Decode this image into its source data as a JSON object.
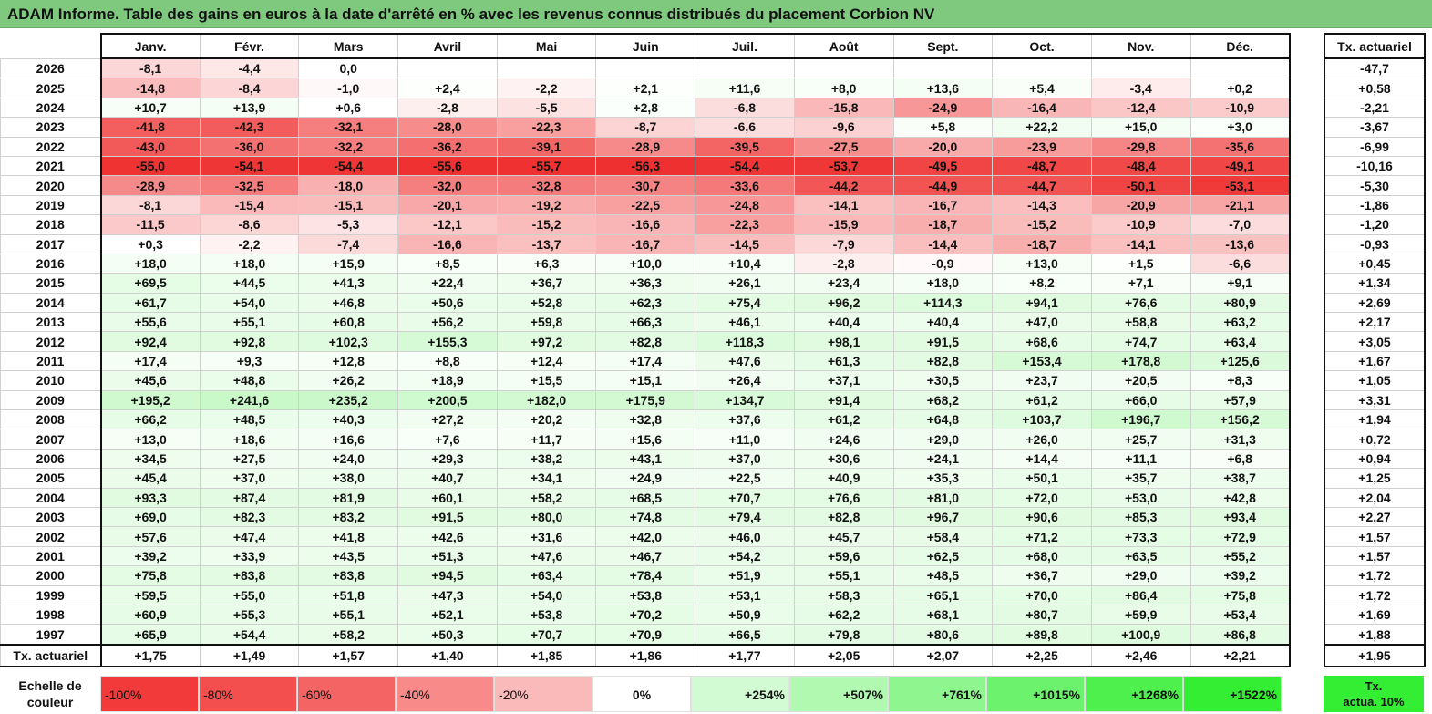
{
  "title": "ADAM Informe. Table des gains en euros à la date d'arrêté en % avec les revenus connus distribués du placement Corbion NV",
  "months": [
    "Janv.",
    "Févr.",
    "Mars",
    "Avril",
    "Mai",
    "Juin",
    "Juil.",
    "Août",
    "Sept.",
    "Oct.",
    "Nov.",
    "Déc."
  ],
  "side_header": "Tx. actuariel",
  "rows": [
    {
      "year": "2026",
      "values": [
        "-8,1",
        "-4,4",
        "0,0",
        "",
        "",
        "",
        "",
        "",
        "",
        "",
        "",
        ""
      ],
      "rate": "-47,7"
    },
    {
      "year": "2025",
      "values": [
        "-14,8",
        "-8,4",
        "-1,0",
        "+2,4",
        "-2,2",
        "+2,1",
        "+11,6",
        "+8,0",
        "+13,6",
        "+5,4",
        "-3,4",
        "+0,2"
      ],
      "rate": "+0,58"
    },
    {
      "year": "2024",
      "values": [
        "+10,7",
        "+13,9",
        "+0,6",
        "-2,8",
        "-5,5",
        "+2,8",
        "-6,8",
        "-15,8",
        "-24,9",
        "-16,4",
        "-12,4",
        "-10,9"
      ],
      "rate": "-2,21"
    },
    {
      "year": "2023",
      "values": [
        "-41,8",
        "-42,3",
        "-32,1",
        "-28,0",
        "-22,3",
        "-8,7",
        "-6,6",
        "-9,6",
        "+5,8",
        "+22,2",
        "+15,0",
        "+3,0"
      ],
      "rate": "-3,67"
    },
    {
      "year": "2022",
      "values": [
        "-43,0",
        "-36,0",
        "-32,2",
        "-36,2",
        "-39,1",
        "-28,9",
        "-39,5",
        "-27,5",
        "-20,0",
        "-23,9",
        "-29,8",
        "-35,6"
      ],
      "rate": "-6,99"
    },
    {
      "year": "2021",
      "values": [
        "-55,0",
        "-54,1",
        "-54,4",
        "-55,6",
        "-55,7",
        "-56,3",
        "-54,4",
        "-53,7",
        "-49,5",
        "-48,7",
        "-48,4",
        "-49,1"
      ],
      "rate": "-10,16"
    },
    {
      "year": "2020",
      "values": [
        "-28,9",
        "-32,5",
        "-18,0",
        "-32,0",
        "-32,8",
        "-30,7",
        "-33,6",
        "-44,2",
        "-44,9",
        "-44,7",
        "-50,1",
        "-53,1"
      ],
      "rate": "-5,30"
    },
    {
      "year": "2019",
      "values": [
        "-8,1",
        "-15,4",
        "-15,1",
        "-20,1",
        "-19,2",
        "-22,5",
        "-24,8",
        "-14,1",
        "-16,7",
        "-14,3",
        "-20,9",
        "-21,1"
      ],
      "rate": "-1,86"
    },
    {
      "year": "2018",
      "values": [
        "-11,5",
        "-8,6",
        "-5,3",
        "-12,1",
        "-15,2",
        "-16,6",
        "-22,3",
        "-15,9",
        "-18,7",
        "-15,2",
        "-10,9",
        "-7,0"
      ],
      "rate": "-1,20"
    },
    {
      "year": "2017",
      "values": [
        "+0,3",
        "-2,2",
        "-7,4",
        "-16,6",
        "-13,7",
        "-16,7",
        "-14,5",
        "-7,9",
        "-14,4",
        "-18,7",
        "-14,1",
        "-13,6"
      ],
      "rate": "-0,93"
    },
    {
      "year": "2016",
      "values": [
        "+18,0",
        "+18,0",
        "+15,9",
        "+8,5",
        "+6,3",
        "+10,0",
        "+10,4",
        "-2,8",
        "-0,9",
        "+13,0",
        "+1,5",
        "-6,6"
      ],
      "rate": "+0,45"
    },
    {
      "year": "2015",
      "values": [
        "+69,5",
        "+44,5",
        "+41,3",
        "+22,4",
        "+36,7",
        "+36,3",
        "+26,1",
        "+23,4",
        "+18,0",
        "+8,2",
        "+7,1",
        "+9,1"
      ],
      "rate": "+1,34"
    },
    {
      "year": "2014",
      "values": [
        "+61,7",
        "+54,0",
        "+46,8",
        "+50,6",
        "+52,8",
        "+62,3",
        "+75,4",
        "+96,2",
        "+114,3",
        "+94,1",
        "+76,6",
        "+80,9"
      ],
      "rate": "+2,69"
    },
    {
      "year": "2013",
      "values": [
        "+55,6",
        "+55,1",
        "+60,8",
        "+56,2",
        "+59,8",
        "+66,3",
        "+46,1",
        "+40,4",
        "+40,4",
        "+47,0",
        "+58,8",
        "+63,2"
      ],
      "rate": "+2,17"
    },
    {
      "year": "2012",
      "values": [
        "+92,4",
        "+92,8",
        "+102,3",
        "+155,3",
        "+97,2",
        "+82,8",
        "+118,3",
        "+98,1",
        "+91,5",
        "+68,6",
        "+74,7",
        "+63,4"
      ],
      "rate": "+3,05"
    },
    {
      "year": "2011",
      "values": [
        "+17,4",
        "+9,3",
        "+12,8",
        "+8,8",
        "+12,4",
        "+17,4",
        "+47,6",
        "+61,3",
        "+82,8",
        "+153,4",
        "+178,8",
        "+125,6"
      ],
      "rate": "+1,67"
    },
    {
      "year": "2010",
      "values": [
        "+45,6",
        "+48,8",
        "+26,2",
        "+18,9",
        "+15,5",
        "+15,1",
        "+26,4",
        "+37,1",
        "+30,5",
        "+23,7",
        "+20,5",
        "+8,3"
      ],
      "rate": "+1,05"
    },
    {
      "year": "2009",
      "values": [
        "+195,2",
        "+241,6",
        "+235,2",
        "+200,5",
        "+182,0",
        "+175,9",
        "+134,7",
        "+91,4",
        "+68,2",
        "+61,2",
        "+66,0",
        "+57,9"
      ],
      "rate": "+3,31"
    },
    {
      "year": "2008",
      "values": [
        "+66,2",
        "+48,5",
        "+40,3",
        "+27,2",
        "+20,2",
        "+32,8",
        "+37,6",
        "+61,2",
        "+64,8",
        "+103,7",
        "+196,7",
        "+156,2"
      ],
      "rate": "+1,94"
    },
    {
      "year": "2007",
      "values": [
        "+13,0",
        "+18,6",
        "+16,6",
        "+7,6",
        "+11,7",
        "+15,6",
        "+11,0",
        "+24,6",
        "+29,0",
        "+26,0",
        "+25,7",
        "+31,3"
      ],
      "rate": "+0,72"
    },
    {
      "year": "2006",
      "values": [
        "+34,5",
        "+27,5",
        "+24,0",
        "+29,3",
        "+38,2",
        "+43,1",
        "+37,0",
        "+30,6",
        "+24,1",
        "+14,4",
        "+11,1",
        "+6,8"
      ],
      "rate": "+0,94"
    },
    {
      "year": "2005",
      "values": [
        "+45,4",
        "+37,0",
        "+38,0",
        "+40,7",
        "+34,1",
        "+24,9",
        "+22,5",
        "+40,9",
        "+35,3",
        "+50,1",
        "+35,7",
        "+38,7"
      ],
      "rate": "+1,25"
    },
    {
      "year": "2004",
      "values": [
        "+93,3",
        "+87,4",
        "+81,9",
        "+60,1",
        "+58,2",
        "+68,5",
        "+70,7",
        "+76,6",
        "+81,0",
        "+72,0",
        "+53,0",
        "+42,8"
      ],
      "rate": "+2,04"
    },
    {
      "year": "2003",
      "values": [
        "+69,0",
        "+82,3",
        "+83,2",
        "+91,5",
        "+80,0",
        "+74,8",
        "+79,4",
        "+82,8",
        "+96,7",
        "+90,6",
        "+85,3",
        "+93,4"
      ],
      "rate": "+2,27"
    },
    {
      "year": "2002",
      "values": [
        "+57,6",
        "+47,4",
        "+41,8",
        "+42,6",
        "+31,6",
        "+42,0",
        "+46,0",
        "+45,7",
        "+58,4",
        "+71,2",
        "+73,3",
        "+72,9"
      ],
      "rate": "+1,57"
    },
    {
      "year": "2001",
      "values": [
        "+39,2",
        "+33,9",
        "+43,5",
        "+51,3",
        "+47,6",
        "+46,7",
        "+54,2",
        "+59,6",
        "+62,5",
        "+68,0",
        "+63,5",
        "+55,2"
      ],
      "rate": "+1,57"
    },
    {
      "year": "2000",
      "values": [
        "+75,8",
        "+83,8",
        "+83,8",
        "+94,5",
        "+63,4",
        "+78,4",
        "+51,9",
        "+55,1",
        "+48,5",
        "+36,7",
        "+29,0",
        "+39,2"
      ],
      "rate": "+1,72"
    },
    {
      "year": "1999",
      "values": [
        "+59,5",
        "+55,0",
        "+51,8",
        "+47,3",
        "+54,0",
        "+53,8",
        "+53,1",
        "+58,3",
        "+65,1",
        "+70,0",
        "+86,4",
        "+75,8"
      ],
      "rate": "+1,72"
    },
    {
      "year": "1998",
      "values": [
        "+60,9",
        "+55,3",
        "+55,1",
        "+52,1",
        "+53,8",
        "+70,2",
        "+50,9",
        "+62,2",
        "+68,1",
        "+80,7",
        "+59,9",
        "+53,4"
      ],
      "rate": "+1,69"
    },
    {
      "year": "1997",
      "values": [
        "+65,9",
        "+54,4",
        "+58,2",
        "+50,3",
        "+70,7",
        "+70,9",
        "+66,5",
        "+79,8",
        "+80,6",
        "+89,8",
        "+100,9",
        "+86,8"
      ],
      "rate": "+1,88"
    }
  ],
  "total_row": {
    "label": "Tx. actuariel",
    "values": [
      "+1,75",
      "+1,49",
      "+1,57",
      "+1,40",
      "+1,85",
      "+1,86",
      "+1,77",
      "+2,05",
      "+2,07",
      "+2,25",
      "+2,46",
      "+2,21"
    ],
    "rate": "+1,95"
  },
  "legend": {
    "label_line1": "Echelle de",
    "label_line2": "couleur",
    "cells": [
      {
        "text": "-100%",
        "color": "#f23a3a",
        "kind": "neg"
      },
      {
        "text": "-80%",
        "color": "#f44f4f",
        "kind": "neg"
      },
      {
        "text": "-60%",
        "color": "#f56464",
        "kind": "neg"
      },
      {
        "text": "-40%",
        "color": "#f98a8a",
        "kind": "neg"
      },
      {
        "text": "-20%",
        "color": "#fbbaba",
        "kind": "neg"
      },
      {
        "text": "0%",
        "color": "#ffffff",
        "kind": "zero"
      },
      {
        "text": "+254%",
        "color": "#d3fbd3",
        "kind": "pos"
      },
      {
        "text": "+507%",
        "color": "#b1f8b1",
        "kind": "pos"
      },
      {
        "text": "+761%",
        "color": "#8ff58f",
        "kind": "pos"
      },
      {
        "text": "+1015%",
        "color": "#6df26d",
        "kind": "pos"
      },
      {
        "text": "+1268%",
        "color": "#4ef04e",
        "kind": "pos"
      },
      {
        "text": "+1522%",
        "color": "#33ee33",
        "kind": "pos"
      }
    ],
    "side_line1": "Tx.",
    "side_line2": "actua. 10%",
    "side_color": "#33ee33"
  }
}
